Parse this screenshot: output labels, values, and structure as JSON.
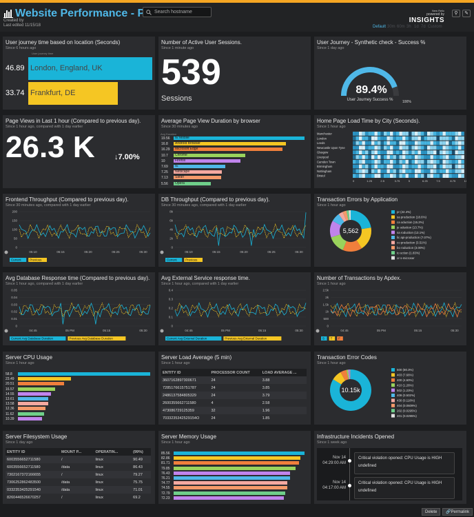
{
  "header": {
    "title": "Website Performance - Prod",
    "created_by": "Created by",
    "last_edited": "Last edited 11/15/18",
    "search_placeholder": "Search hostname",
    "powered_by": "powered by",
    "brand_small": "New Relic",
    "brand": "INSIGHTS",
    "time_options": [
      "Default",
      "30m",
      "60m",
      "3h",
      "1d",
      "7d",
      "Custom"
    ]
  },
  "w_journey": {
    "title": "User journey time based on location (Seconds)",
    "sub": "Since 6 hours ago",
    "label": "User journey time",
    "rows": [
      {
        "value": "46.89",
        "city": "London, England, UK",
        "color": "#1ab4d8",
        "frac": 1.0
      },
      {
        "value": "33.74",
        "city": "Frankfurt, DE",
        "color": "#f5c623",
        "frac": 0.72
      }
    ]
  },
  "w_sessions": {
    "title": "Number of Active User Sessions.",
    "sub": "Since 1 minute ago",
    "value": "539",
    "unit": "Sessions"
  },
  "w_synth": {
    "title": "User Journey - Synthetic check - Success %",
    "sub": "Since 1 day ago",
    "value": "89.4%",
    "label": "User Journey Success %",
    "max": "100%",
    "pct": 89.4
  },
  "w_pageviews": {
    "title": "Page Views in Last 1 hour (Compared to previous day).",
    "sub": "Since 1 hour ago, compared with 1 day earlier",
    "value": "26.3 K",
    "delta": "7.00%"
  },
  "w_browser": {
    "title": "Average Page View Duration by browser",
    "sub": "Since 30 minutes ago",
    "label": "Avg Duration",
    "rows": [
      {
        "v": "19.56",
        "n": "IE Mobile",
        "c": "#1ab4d8"
      },
      {
        "v": "16.8",
        "n": "Android Browser",
        "c": "#f5c623"
      },
      {
        "v": "16.29",
        "n": "Microsoft Edge",
        "c": "#f07f3c"
      },
      {
        "v": "10.7",
        "n": "Chrome",
        "c": "#9ad35c"
      },
      {
        "v": "10",
        "n": "Firefox",
        "c": "#c084ec"
      },
      {
        "v": "7.69",
        "n": "IE",
        "c": "#4fb8e8"
      },
      {
        "v": "7.25",
        "n": "Netscape",
        "c": "#f4a9a0"
      },
      {
        "v": "7.13",
        "n": "Safari",
        "c": "#f59a6a"
      },
      {
        "v": "5.56",
        "n": "Opera",
        "c": "#6fcf8a"
      }
    ]
  },
  "w_city": {
    "title": "Home Page Load Time by City (Seconds).",
    "sub": "Since 1 hour ago",
    "cities": [
      "Manchester",
      "London",
      "Leeds",
      "Newcastle Upon Tyne",
      "Glasgow",
      "Liverpool",
      "Camden Town",
      "Birmingham",
      "Nottingham",
      "Bristol"
    ],
    "ticks": [
      "0",
      "1.25",
      "2.5",
      "3.75",
      "5",
      "6.25",
      "7.5",
      "8.75",
      "10"
    ]
  },
  "w_front": {
    "title": "Frontend Throughput (Compared to previous day).",
    "sub": "Since 30 minutes ago, compared with 1 day earlier",
    "yticks": [
      "200",
      "150",
      "100",
      "50",
      "0"
    ],
    "xticks": [
      "05:10",
      "05:15",
      "05:20",
      "05:25",
      "05:30"
    ],
    "legend": [
      {
        "n": "Current",
        "c": "#1ab4d8"
      },
      {
        "n": "Previous",
        "c": "#f5c623"
      }
    ]
  },
  "w_db": {
    "title": "DB Throughput (Compared to previous day).",
    "sub": "Since 30 minutes ago, compared with 1 day earlier",
    "yticks": [
      "8k",
      "6k",
      "4k",
      "2k",
      "0"
    ],
    "xticks": [
      "05:10",
      "05:15",
      "05:20",
      "05:25",
      "05:30"
    ],
    "legend": [
      {
        "n": "Current",
        "c": "#1ab4d8"
      },
      {
        "n": "Previous",
        "c": "#f5c623"
      }
    ]
  },
  "w_txerr": {
    "title": "Transaction Errors by Application",
    "sub": "Since 1 hour ago",
    "total": "5,562",
    "slices": [
      {
        "n": "pr",
        "p": "(22.4%)",
        "v": 22.4,
        "c": "#1ab4d8"
      },
      {
        "n": "sa",
        "p": "production (18.6%)",
        "v": 18.6,
        "c": "#f5c623"
      },
      {
        "n": "ca",
        "p": "oduction (15.2%)",
        "v": 15.2,
        "c": "#f07f3c"
      },
      {
        "n": "je",
        "p": "oduction (13.7%)",
        "v": 13.7,
        "c": "#9ad35c"
      },
      {
        "n": "sa",
        "p": "roduction (13.1%)",
        "v": 13.1,
        "c": "#c084ec"
      },
      {
        "n": "lic",
        "p": "api-production (7.07%)",
        "v": 7.07,
        "c": "#4fb8e8"
      },
      {
        "n": "co",
        "p": "production (3.51%)",
        "v": 3.51,
        "c": "#f4a9a0"
      },
      {
        "n": "bo",
        "p": "roduction (3.00%)",
        "v": 3.0,
        "c": "#f59a6a"
      },
      {
        "n": "to",
        "p": "uction (1.83%)",
        "v": 1.83,
        "c": "#6fcf8a"
      },
      {
        "n": "or",
        "p": "s-microser",
        "v": 1.5,
        "c": "#e0e0e0"
      }
    ]
  },
  "w_dbresp": {
    "title": "Avg Database Response time (Compared to previous day).",
    "sub": "Since 1 hour ago, compared with 1 day earlier",
    "yticks": [
      "0.05",
      "0.04",
      "0.03",
      "0.02",
      "0.01",
      "0"
    ],
    "xticks": [
      "04:45",
      "05 PM",
      "05:15",
      "05:30"
    ],
    "legend": [
      {
        "n": "Current Avg Database Duration",
        "c": "#1ab4d8"
      },
      {
        "n": "Previous Avg Database Duration",
        "c": "#f5c623"
      }
    ]
  },
  "w_ext": {
    "title": "Avg External Service response time.",
    "sub": "Since 1 hour ago, compared with 1 day earlier",
    "yticks": [
      "0.4",
      "0.3",
      "0.2",
      "0.1",
      "0"
    ],
    "xticks": [
      "04:45",
      "05 PM",
      "05:15",
      "05:30"
    ],
    "legend": [
      {
        "n": "Current Avg External Duration",
        "c": "#1ab4d8"
      },
      {
        "n": "Previous Avg External Duration",
        "c": "#f5c623"
      }
    ]
  },
  "w_apdex": {
    "title": "Number of Transactions by Apdex.",
    "sub": "Since 1 hour ago",
    "yticks": [
      "2.5k",
      "2k",
      "1.5k",
      "1k",
      "500",
      "0"
    ],
    "xticks": [
      "04:45",
      "05 PM",
      "05:15",
      "05:30"
    ],
    "legend": [
      {
        "n": "S",
        "c": "#1ab4d8"
      },
      {
        "n": "T",
        "c": "#f5c623"
      },
      {
        "n": "F",
        "c": "#f07f3c"
      }
    ]
  },
  "w_cpu": {
    "title": "Server CPU Usage",
    "sub": "Since 1 hour ago",
    "rows": [
      {
        "v": "58.8",
        "c": "#1ab4d8",
        "f": 1.0
      },
      {
        "v": "23.49",
        "c": "#f5c623",
        "f": 0.4
      },
      {
        "v": "20.51",
        "c": "#f07f3c",
        "f": 0.35
      },
      {
        "v": "16.57",
        "c": "#9ad35c",
        "f": 0.28
      },
      {
        "v": "14.55",
        "c": "#c084ec",
        "f": 0.25
      },
      {
        "v": "13.61",
        "c": "#4fb8e8",
        "f": 0.23
      },
      {
        "v": "13.58",
        "c": "#f4a9a0",
        "f": 0.23
      },
      {
        "v": "12.36",
        "c": "#f59a6a",
        "f": 0.21
      },
      {
        "v": "11.62",
        "c": "#6fcf8a",
        "f": 0.2
      },
      {
        "v": "10.39",
        "c": "#c084ec",
        "f": 0.18
      }
    ]
  },
  "w_load": {
    "title": "Server Load Average (5 min)",
    "sub": "Since 1 hour ago",
    "headers": [
      "ENTITY ID",
      "PROCESSOR COUNT",
      "LOAD AVERAGE ..."
    ],
    "rows": [
      [
        "3607162897300671",
        "24",
        "3.88"
      ],
      [
        "7285176615751787",
        "24",
        "3.85"
      ],
      [
        "2486137584805329",
        "24",
        "3.79"
      ],
      [
        "2600355662711580",
        "4",
        "2.58"
      ],
      [
        "473086729125359",
        "32",
        "1.96"
      ],
      [
        "7033235342529154O",
        "24",
        "1.85"
      ]
    ]
  },
  "w_errcodes": {
    "title": "Transaction Error Codes",
    "sub": "Since 1 hour ago",
    "total": "10.15k",
    "slices": [
      {
        "n": "500 (80.3%)",
        "v": 80.3,
        "c": "#1ab4d8"
      },
      {
        "n": "403 (7.66%)",
        "v": 7.66,
        "c": "#f5c623"
      },
      {
        "n": "400 (4.60%)",
        "v": 4.6,
        "c": "#f07f3c"
      },
      {
        "n": "410 (1.26%)",
        "v": 1.26,
        "c": "#9ad35c"
      },
      {
        "n": "502 (1.23%)",
        "v": 1.23,
        "c": "#c084ec"
      },
      {
        "n": "409 (0.502%)",
        "v": 0.502,
        "c": "#4fb8e8"
      },
      {
        "n": "430 (0.118%)",
        "v": 0.118,
        "c": "#f4a9a0"
      },
      {
        "n": "404 (0.0609%)",
        "v": 0.0609,
        "c": "#f59a6a"
      },
      {
        "n": "202 (0.0295%)",
        "v": 0.0295,
        "c": "#6fcf8a"
      },
      {
        "n": "401 (0.0295%)",
        "v": 0.0295,
        "c": "#e0e0e0"
      }
    ]
  },
  "w_fs": {
    "title": "Server Filesystem Usage",
    "sub": "Since 1 day ago",
    "headers": [
      "ENTITY ID",
      "MOUNT P...",
      "OPERATIN...",
      "(99%)"
    ],
    "rows": [
      [
        "6003556652711580",
        "/",
        "linux",
        "90.49"
      ],
      [
        "6003556652711580",
        "/data",
        "linux",
        "86.43"
      ],
      [
        "7302167372166655",
        "/",
        "linux",
        "79.27"
      ],
      [
        "7306252862483500",
        "/data",
        "linux",
        "75.75"
      ],
      [
        "0332353425291540",
        "/data",
        "linux",
        "71.01"
      ],
      [
        "8260446526670257",
        "/",
        "linux",
        "69.2"
      ]
    ]
  },
  "w_mem": {
    "title": "Server Memory Usage",
    "sub": "Since 1 hour ago",
    "rows": [
      {
        "v": "85.56",
        "c": "#1ab4d8",
        "f": 1.0
      },
      {
        "v": "82.86",
        "c": "#f5c623",
        "f": 0.97
      },
      {
        "v": "81.71",
        "c": "#f07f3c",
        "f": 0.96
      },
      {
        "v": "79.85",
        "c": "#9ad35c",
        "f": 0.93
      },
      {
        "v": "76.43",
        "c": "#c084ec",
        "f": 0.89
      },
      {
        "v": "76.21",
        "c": "#4fb8e8",
        "f": 0.89
      },
      {
        "v": "74.77",
        "c": "#f4a9a0",
        "f": 0.87
      },
      {
        "v": "74.55",
        "c": "#f59a6a",
        "f": 0.87
      },
      {
        "v": "72.79",
        "c": "#6fcf8a",
        "f": 0.85
      },
      {
        "v": "72.23",
        "c": "#c084ec",
        "f": 0.84
      }
    ]
  },
  "w_inc": {
    "title": "Infrastructure Incidents Opened",
    "sub": "Since 1 week ago",
    "items": [
      {
        "date": "Nov 14",
        "time": "04:29:00 AM",
        "text": "Critical violation opened: CPU Usage is HIGH",
        "sub": "undefined"
      },
      {
        "date": "Nov 14",
        "time": "04:17:00 AM",
        "text": "Critical violation opened: CPU Usage is HIGH",
        "sub": "undefined"
      }
    ]
  },
  "footer": {
    "delete": "Delete",
    "permalink": "Permalink"
  }
}
